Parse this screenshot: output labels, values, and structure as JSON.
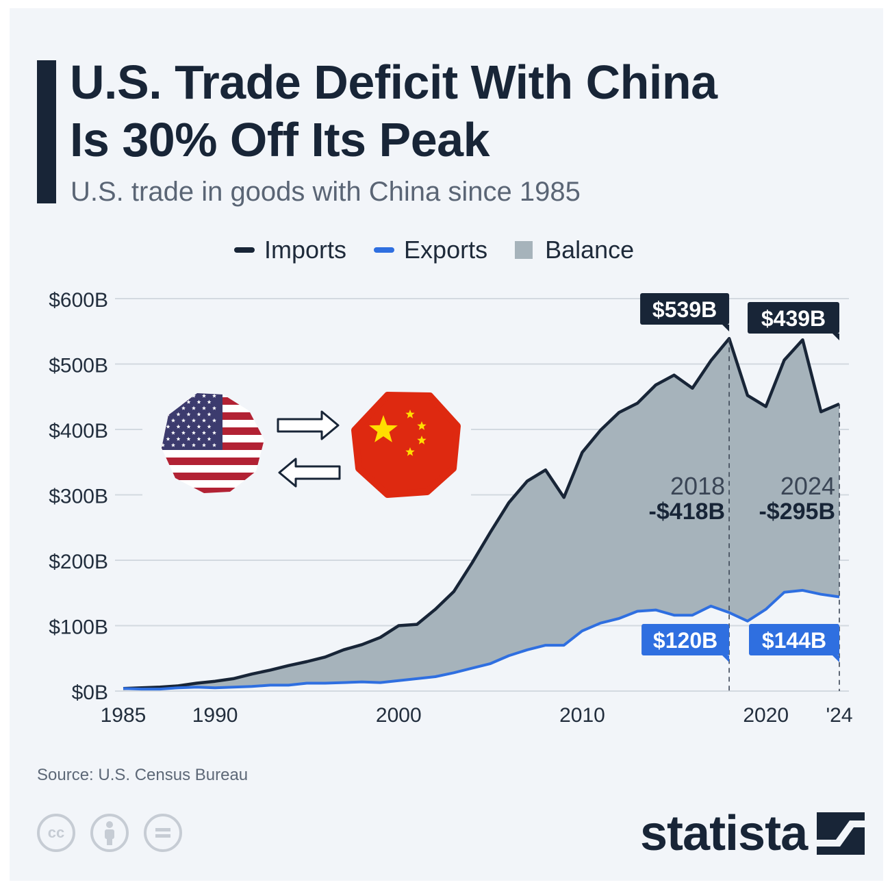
{
  "title": "U.S. Trade Deficit With China\nIs 30% Off Its Peak",
  "subtitle": "U.S. trade in goods with China since 1985",
  "legend": {
    "imports": "Imports",
    "exports": "Exports",
    "balance": "Balance"
  },
  "colors": {
    "imports": "#182537",
    "exports": "#2f6fe0",
    "balance": "#a6b3bb",
    "title": "#182537"
  },
  "icons": {
    "us_flag": "us-flag-icon",
    "china_flag": "china-flag-icon",
    "arrow_right": "arrow-right-icon",
    "arrow_left": "arrow-left-icon"
  },
  "chart_data": {
    "type": "area",
    "title": "U.S. Trade Deficit With China Is 30% Off Its Peak",
    "subtitle": "U.S. trade in goods with China since 1985",
    "x": [
      1985,
      1986,
      1987,
      1988,
      1989,
      1990,
      1991,
      1992,
      1993,
      1994,
      1995,
      1996,
      1997,
      1998,
      1999,
      2000,
      2001,
      2002,
      2003,
      2004,
      2005,
      2006,
      2007,
      2008,
      2009,
      2010,
      2011,
      2012,
      2013,
      2014,
      2015,
      2016,
      2017,
      2018,
      2019,
      2020,
      2021,
      2022,
      2023,
      2024
    ],
    "series": [
      {
        "name": "Imports",
        "values": [
          4,
          5,
          6,
          8,
          12,
          15,
          19,
          26,
          32,
          39,
          45,
          52,
          63,
          71,
          82,
          100,
          102,
          125,
          152,
          196,
          243,
          288,
          321,
          338,
          296,
          365,
          399,
          426,
          440,
          468,
          483,
          463,
          505,
          539,
          452,
          435,
          506,
          537,
          427,
          439
        ]
      },
      {
        "name": "Exports",
        "values": [
          4,
          3,
          3,
          5,
          6,
          5,
          6,
          7,
          9,
          9,
          12,
          12,
          13,
          14,
          13,
          16,
          19,
          22,
          28,
          35,
          42,
          54,
          63,
          70,
          70,
          92,
          104,
          111,
          122,
          124,
          116,
          116,
          130,
          120,
          107,
          125,
          151,
          154,
          148,
          144
        ]
      }
    ],
    "balance": {
      "label": "Balance",
      "description": "area between Imports and Exports"
    },
    "ylim": [
      0,
      600
    ],
    "xlim": [
      1985,
      2024
    ],
    "y_ticks": [
      "$0B",
      "$100B",
      "$200B",
      "$300B",
      "$400B",
      "$500B",
      "$600B"
    ],
    "x_ticks": [
      "1985",
      "1990",
      "2000",
      "2010",
      "2020",
      "'24"
    ],
    "annotations": {
      "imports_2018": "$539B",
      "imports_2024": "$439B",
      "exports_2018": "$120B",
      "exports_2024": "$144B",
      "year_2018": "2018",
      "year_2024": "2024",
      "balance_2018": "-$418B",
      "balance_2024": "-$295B"
    },
    "grid": true,
    "legend_position": "top"
  },
  "footer": {
    "source": "Source: U.S. Census Bureau",
    "brand": "statista",
    "cc_icons": [
      "cc-icon",
      "by-icon",
      "nd-icon"
    ]
  }
}
